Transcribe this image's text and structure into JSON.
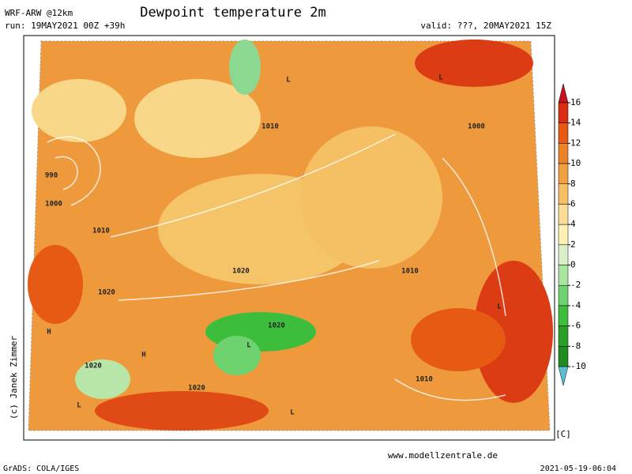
{
  "header": {
    "model": "WRF-ARW @12km",
    "run": "run: 19MAY2021 00Z +39h",
    "title": "Dewpoint temperature 2m",
    "valid": "valid: ???, 20MAY2021 15Z"
  },
  "colorbar": {
    "ticks": [
      16,
      14,
      12,
      10,
      8,
      6,
      4,
      2,
      0,
      -2,
      -4,
      -6,
      -8,
      -10
    ],
    "colors": [
      "#c8141e",
      "#dc2d14",
      "#e65a14",
      "#ec8228",
      "#f0a040",
      "#f5c064",
      "#fadc96",
      "#fff0b4",
      "#dcf0c8",
      "#a8e6a0",
      "#6ed26e",
      "#3cbe3c",
      "#28a028",
      "#1e8c1e",
      "#5abed2"
    ],
    "unit": "[C]"
  },
  "map_labels": [
    "990",
    "1000",
    "1010",
    "1020",
    "1020",
    "1020",
    "1020",
    "1020",
    "1010",
    "1000",
    "1010",
    "1010",
    "H",
    "H",
    "L",
    "L",
    "L",
    "L",
    "L",
    "L"
  ],
  "footer": {
    "left": "GrADS: COLA/IGES",
    "right": "2021-05-19-06:04",
    "url": "www.modellzentrale.de",
    "copyright": "(c) Janek Zimmer"
  }
}
